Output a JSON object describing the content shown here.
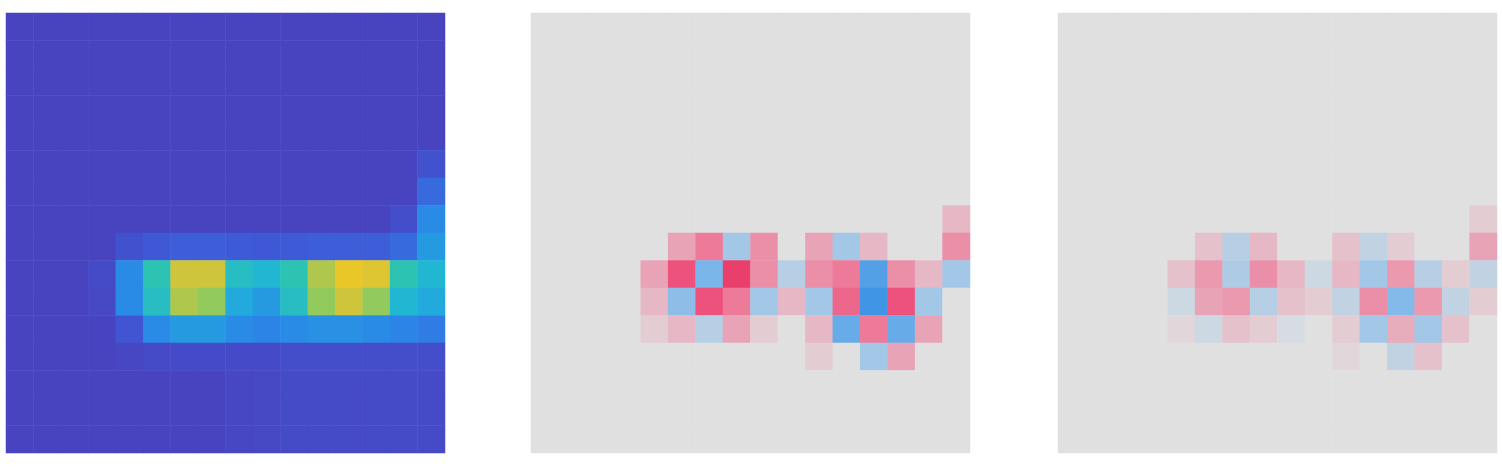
{
  "chart_data": [
    {
      "type": "heatmap",
      "tick_labels": false,
      "grid": false,
      "color_range": [
        0,
        1
      ],
      "cells": [
        [
          0.02,
          0.02,
          0.02,
          0.02,
          0.02,
          0.02,
          0.02,
          0.02,
          0.02,
          0.02,
          0.02,
          0.02,
          0.02,
          0.02,
          0.02,
          0.02
        ],
        [
          0.02,
          0.02,
          0.02,
          0.02,
          0.02,
          0.02,
          0.02,
          0.02,
          0.02,
          0.02,
          0.02,
          0.02,
          0.02,
          0.02,
          0.02,
          0.02
        ],
        [
          0.02,
          0.02,
          0.02,
          0.02,
          0.02,
          0.02,
          0.02,
          0.02,
          0.02,
          0.02,
          0.02,
          0.02,
          0.02,
          0.02,
          0.02,
          0.02
        ],
        [
          0.02,
          0.02,
          0.02,
          0.02,
          0.02,
          0.02,
          0.02,
          0.02,
          0.02,
          0.02,
          0.02,
          0.02,
          0.02,
          0.02,
          0.02,
          0.02
        ],
        [
          0.02,
          0.02,
          0.02,
          0.02,
          0.02,
          0.02,
          0.02,
          0.02,
          0.02,
          0.02,
          0.02,
          0.02,
          0.02,
          0.02,
          0.02,
          0.02
        ],
        [
          0.02,
          0.02,
          0.02,
          0.02,
          0.02,
          0.02,
          0.02,
          0.02,
          0.02,
          0.02,
          0.02,
          0.02,
          0.02,
          0.02,
          0.02,
          0.1
        ],
        [
          0.02,
          0.02,
          0.02,
          0.02,
          0.02,
          0.02,
          0.02,
          0.02,
          0.02,
          0.02,
          0.02,
          0.02,
          0.02,
          0.02,
          0.02,
          0.2
        ],
        [
          0.02,
          0.02,
          0.02,
          0.02,
          0.02,
          0.02,
          0.02,
          0.02,
          0.02,
          0.02,
          0.02,
          0.02,
          0.02,
          0.02,
          0.08,
          0.3
        ],
        [
          0.02,
          0.02,
          0.02,
          0.02,
          0.1,
          0.14,
          0.16,
          0.16,
          0.15,
          0.14,
          0.15,
          0.16,
          0.16,
          0.16,
          0.2,
          0.35
        ],
        [
          0.02,
          0.02,
          0.02,
          0.06,
          0.3,
          0.55,
          0.85,
          0.85,
          0.5,
          0.45,
          0.55,
          0.8,
          0.95,
          0.9,
          0.55,
          0.45
        ],
        [
          0.02,
          0.02,
          0.02,
          0.05,
          0.3,
          0.5,
          0.8,
          0.75,
          0.4,
          0.35,
          0.5,
          0.75,
          0.85,
          0.75,
          0.45,
          0.4
        ],
        [
          0.02,
          0.02,
          0.02,
          0.03,
          0.12,
          0.3,
          0.35,
          0.35,
          0.3,
          0.28,
          0.3,
          0.32,
          0.32,
          0.3,
          0.28,
          0.25
        ],
        [
          0.02,
          0.02,
          0.02,
          0.02,
          0.04,
          0.06,
          0.07,
          0.07,
          0.07,
          0.07,
          0.08,
          0.08,
          0.08,
          0.08,
          0.08,
          0.08
        ],
        [
          0.02,
          0.02,
          0.02,
          0.02,
          0.02,
          0.02,
          0.02,
          0.02,
          0.04,
          0.05,
          0.06,
          0.06,
          0.06,
          0.06,
          0.06,
          0.06
        ],
        [
          0.02,
          0.02,
          0.02,
          0.02,
          0.02,
          0.02,
          0.02,
          0.02,
          0.04,
          0.05,
          0.06,
          0.06,
          0.06,
          0.06,
          0.06,
          0.06
        ],
        [
          0.02,
          0.02,
          0.02,
          0.02,
          0.02,
          0.02,
          0.02,
          0.02,
          0.04,
          0.05,
          0.06,
          0.06,
          0.06,
          0.06,
          0.06,
          0.06
        ]
      ]
    },
    {
      "type": "heatmap",
      "tick_labels": false,
      "grid": false,
      "color_range": [
        -1,
        1
      ],
      "cells": [
        [
          0,
          0,
          0,
          0,
          0,
          0,
          0,
          0,
          0,
          0,
          0,
          0,
          0,
          0,
          0,
          0
        ],
        [
          0,
          0,
          0,
          0,
          0,
          0,
          0,
          0,
          0,
          0,
          0,
          0,
          0,
          0,
          0,
          0
        ],
        [
          0,
          0,
          0,
          0,
          0,
          0,
          0,
          0,
          0,
          0,
          0,
          0,
          0,
          0,
          0,
          0
        ],
        [
          0,
          0,
          0,
          0,
          0,
          0,
          0,
          0,
          0,
          0,
          0,
          0,
          0,
          0,
          0,
          0
        ],
        [
          0,
          0,
          0,
          0,
          0,
          0,
          0,
          0,
          0,
          0,
          0,
          0,
          0,
          0,
          0,
          0
        ],
        [
          0,
          0,
          0,
          0,
          0,
          0,
          0,
          0,
          0,
          0,
          0,
          0,
          0,
          0,
          0,
          0
        ],
        [
          0,
          0,
          0,
          0,
          0,
          0,
          0,
          0,
          0,
          0,
          0,
          0,
          0,
          0,
          0,
          0
        ],
        [
          0,
          0,
          0,
          0,
          0,
          0,
          0,
          0,
          0,
          0,
          0,
          0,
          0,
          0,
          0,
          0.2
        ],
        [
          0,
          0,
          0,
          0,
          0,
          0.3,
          0.5,
          -0.3,
          0.4,
          0,
          0.3,
          -0.3,
          0.2,
          0,
          0,
          0.4
        ],
        [
          0,
          0,
          0,
          0,
          0.3,
          0.7,
          -0.5,
          0.8,
          0.4,
          -0.2,
          0.4,
          0.5,
          -0.7,
          0.4,
          0.2,
          -0.3
        ],
        [
          0,
          0,
          0,
          0,
          0.2,
          -0.4,
          0.7,
          0.5,
          -0.3,
          0.2,
          -0.3,
          0.6,
          -0.8,
          0.7,
          -0.3,
          0
        ],
        [
          0,
          0,
          0,
          0,
          0.1,
          0.2,
          -0.2,
          0.3,
          0.1,
          0,
          0.2,
          -0.6,
          0.5,
          -0.6,
          0.3,
          0
        ],
        [
          0,
          0,
          0,
          0,
          0,
          0,
          0,
          0,
          0,
          0,
          0.1,
          0,
          -0.3,
          0.3,
          0,
          0
        ],
        [
          0,
          0,
          0,
          0,
          0,
          0,
          0,
          0,
          0,
          0,
          0,
          0,
          0,
          0,
          0,
          0
        ],
        [
          0,
          0,
          0,
          0,
          0,
          0,
          0,
          0,
          0,
          0,
          0,
          0,
          0,
          0,
          0,
          0
        ],
        [
          0,
          0,
          0,
          0,
          0,
          0,
          0,
          0,
          0,
          0,
          0,
          0,
          0,
          0,
          0,
          0
        ]
      ]
    },
    {
      "type": "heatmap",
      "tick_labels": false,
      "grid": false,
      "color_range": [
        -1,
        1
      ],
      "cells": [
        [
          0,
          0,
          0,
          0,
          0,
          0,
          0,
          0,
          0,
          0,
          0,
          0,
          0,
          0,
          0,
          0
        ],
        [
          0,
          0,
          0,
          0,
          0,
          0,
          0,
          0,
          0,
          0,
          0,
          0,
          0,
          0,
          0,
          0
        ],
        [
          0,
          0,
          0,
          0,
          0,
          0,
          0,
          0,
          0,
          0,
          0,
          0,
          0,
          0,
          0,
          0
        ],
        [
          0,
          0,
          0,
          0,
          0,
          0,
          0,
          0,
          0,
          0,
          0,
          0,
          0,
          0,
          0,
          0
        ],
        [
          0,
          0,
          0,
          0,
          0,
          0,
          0,
          0,
          0,
          0,
          0,
          0,
          0,
          0,
          0,
          0
        ],
        [
          0,
          0,
          0,
          0,
          0,
          0,
          0,
          0,
          0,
          0,
          0,
          0,
          0,
          0,
          0,
          0
        ],
        [
          0,
          0,
          0,
          0,
          0,
          0,
          0,
          0,
          0,
          0,
          0,
          0,
          0,
          0,
          0,
          0
        ],
        [
          0,
          0,
          0,
          0,
          0,
          0,
          0,
          0,
          0,
          0,
          0,
          0,
          0,
          0,
          0,
          0.1
        ],
        [
          0,
          0,
          0,
          0,
          0,
          0.15,
          -0.2,
          0.2,
          0,
          0,
          0.15,
          -0.15,
          0.1,
          0,
          0,
          0.3
        ],
        [
          0,
          0,
          0,
          0,
          0.15,
          0.35,
          -0.25,
          0.4,
          0.2,
          -0.1,
          0.2,
          -0.3,
          0.35,
          -0.2,
          0.1,
          -0.15
        ],
        [
          0,
          0,
          0,
          0,
          -0.1,
          0.3,
          0.35,
          -0.2,
          0.15,
          0.1,
          -0.15,
          0.4,
          -0.45,
          0.35,
          -0.15,
          0.1
        ],
        [
          0,
          0,
          0,
          0,
          0.05,
          -0.1,
          0.15,
          0.1,
          -0.05,
          0,
          0.1,
          -0.3,
          0.25,
          -0.3,
          0.15,
          0
        ],
        [
          0,
          0,
          0,
          0,
          0,
          0,
          0,
          0,
          0,
          0,
          0.05,
          0,
          -0.15,
          0.15,
          0,
          0
        ],
        [
          0,
          0,
          0,
          0,
          0,
          0,
          0,
          0,
          0,
          0,
          0,
          0,
          0,
          0,
          0,
          0
        ],
        [
          0,
          0,
          0,
          0,
          0,
          0,
          0,
          0,
          0,
          0,
          0,
          0,
          0,
          0,
          0,
          0
        ],
        [
          0,
          0,
          0,
          0,
          0,
          0,
          0,
          0,
          0,
          0,
          0,
          0,
          0,
          0,
          0,
          0
        ]
      ]
    }
  ]
}
